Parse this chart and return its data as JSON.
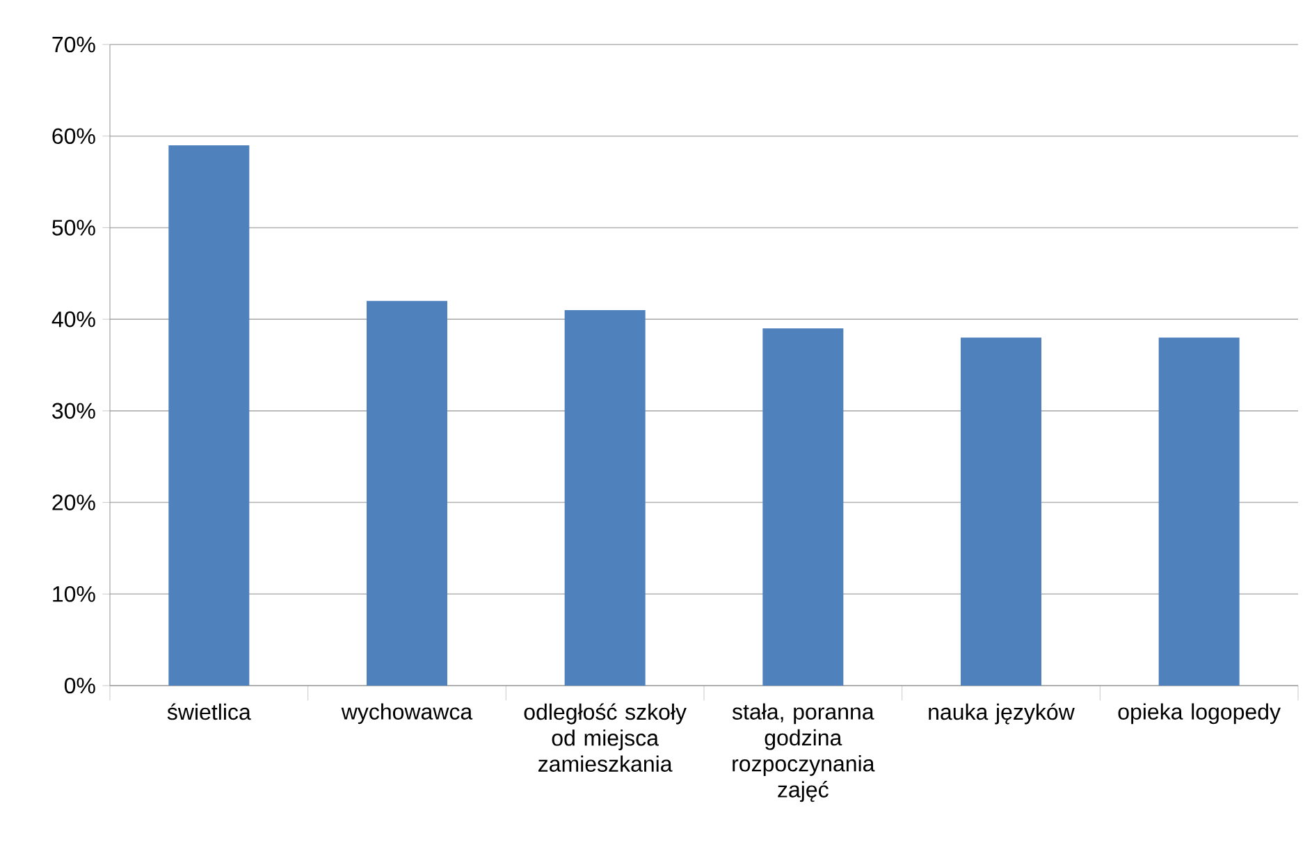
{
  "chart_data": {
    "type": "bar",
    "categories": [
      "świetlica",
      "wychowawca",
      "odległość szkoły od miejsca zamieszkania",
      "stała, poranna godzina rozpoczynania zajęć",
      "nauka języków",
      "opieka logopedy"
    ],
    "values": [
      59,
      42,
      41,
      39,
      38,
      38
    ],
    "color": "#4f81bd",
    "ylim": [
      0,
      70
    ],
    "yticks": [
      {
        "value": 0,
        "label": "0%"
      },
      {
        "value": 10,
        "label": "10%"
      },
      {
        "value": 20,
        "label": "20%"
      },
      {
        "value": 30,
        "label": "30%"
      },
      {
        "value": 40,
        "label": "40%"
      },
      {
        "value": 50,
        "label": "50%"
      },
      {
        "value": 60,
        "label": "60%"
      },
      {
        "value": 70,
        "label": "70%"
      }
    ],
    "grid": "y"
  }
}
